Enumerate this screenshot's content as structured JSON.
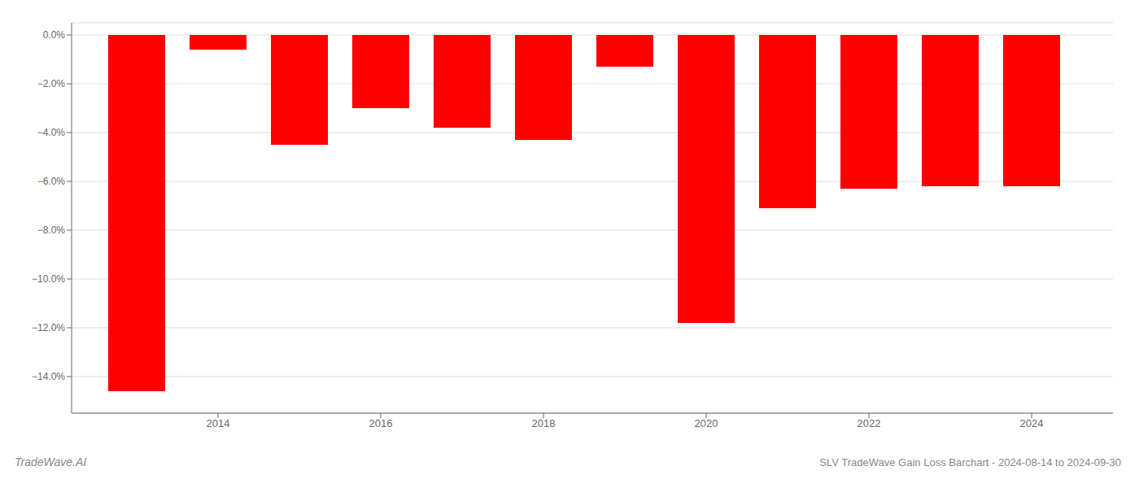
{
  "chart_data": {
    "type": "bar",
    "x": [
      2013,
      2014,
      2015,
      2016,
      2017,
      2018,
      2019,
      2020,
      2021,
      2022,
      2023,
      2024
    ],
    "values": [
      -0.146,
      -0.006,
      -0.045,
      -0.03,
      -0.038,
      -0.043,
      -0.013,
      -0.118,
      -0.071,
      -0.063,
      -0.062,
      -0.062
    ],
    "color": "#ff0000",
    "xlim": [
      2012.2,
      2025.0
    ],
    "xticks": [
      2014,
      2016,
      2018,
      2020,
      2022,
      2024
    ],
    "ylim": [
      -0.155,
      0.005
    ],
    "yticks": [
      {
        "value": 0.0,
        "label": "0.0%"
      },
      {
        "value": -0.02,
        "label": "−2.0%"
      },
      {
        "value": -0.04,
        "label": "−4.0%"
      },
      {
        "value": -0.06,
        "label": "−6.0%"
      },
      {
        "value": -0.08,
        "label": "−8.0%"
      },
      {
        "value": -0.1,
        "label": "−10.0%"
      },
      {
        "value": -0.12,
        "label": "−12.0%"
      },
      {
        "value": -0.14,
        "label": "−14.0%"
      }
    ],
    "grid": true,
    "annotations": [
      "TradeWave.AI",
      "SLV TradeWave Gain Loss Barchart - 2024-08-14 to 2024-09-30"
    ]
  }
}
